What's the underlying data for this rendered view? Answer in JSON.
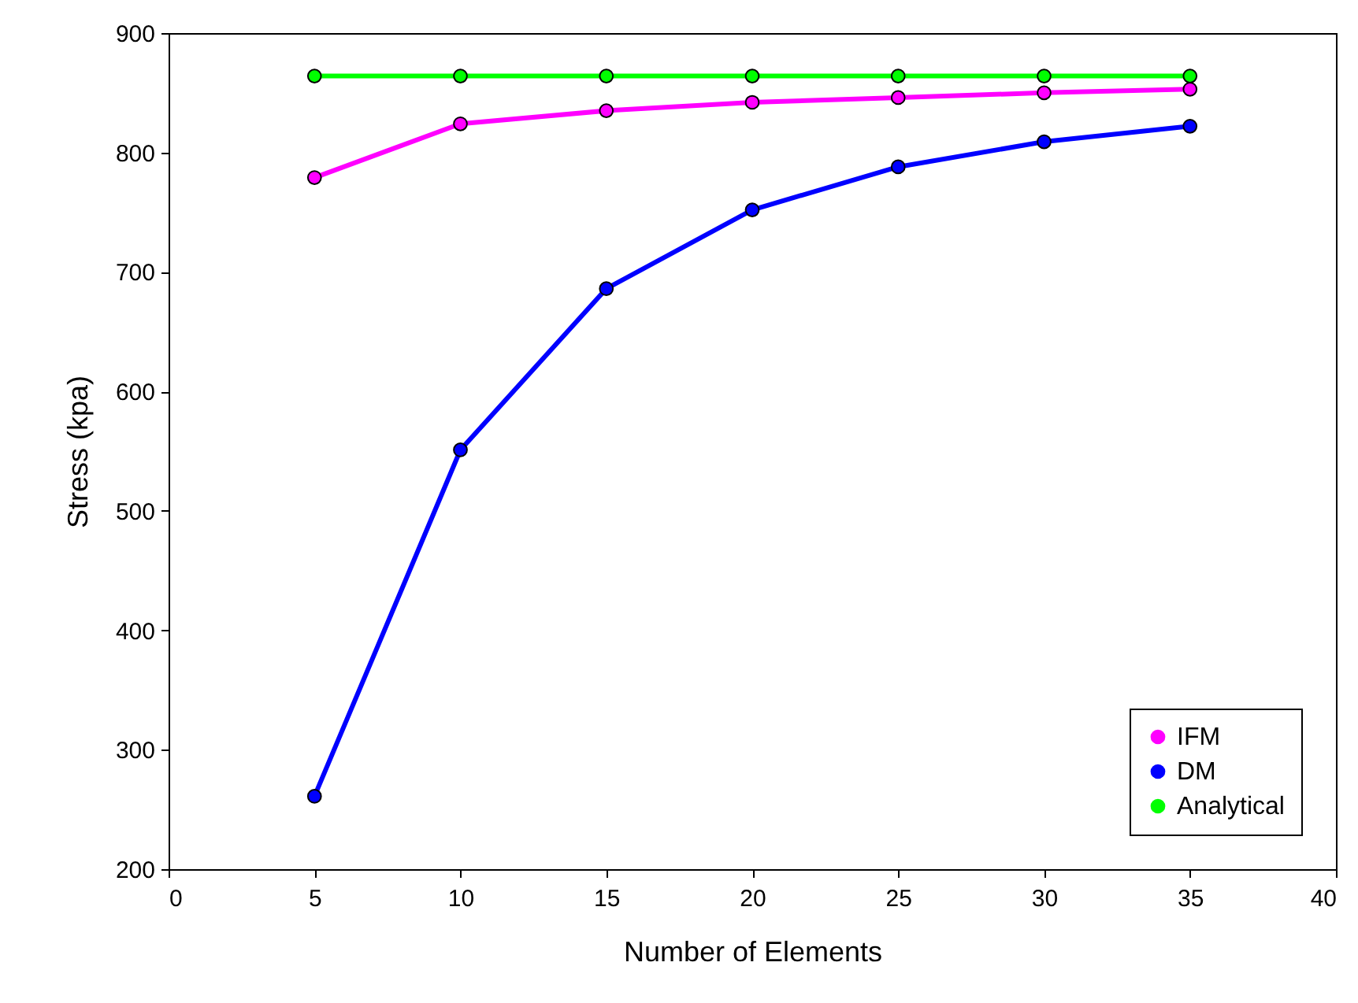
{
  "chart_data": {
    "type": "line",
    "xlabel": "Number of Elements",
    "ylabel": "Stress (kpa)",
    "x": [
      5,
      10,
      15,
      20,
      25,
      30,
      35
    ],
    "series": [
      {
        "name": "IFM",
        "color": "#ff00ff",
        "values": [
          779,
          824,
          835,
          842,
          846,
          850,
          853
        ]
      },
      {
        "name": "DM",
        "color": "#0000ff",
        "values": [
          261,
          551,
          686,
          752,
          788,
          809,
          822
        ]
      },
      {
        "name": "Analytical",
        "color": "#00ff00",
        "values": [
          864,
          864,
          864,
          864,
          864,
          864,
          864
        ]
      }
    ],
    "xlim": [
      0,
      40
    ],
    "xticks": [
      0,
      5,
      10,
      15,
      20,
      25,
      30,
      35,
      40
    ],
    "ylim": [
      200,
      900
    ],
    "yticks": [
      200,
      300,
      400,
      500,
      600,
      700,
      800,
      900
    ],
    "grid": false,
    "legend": "bottom right",
    "marker": "circle",
    "line_style": "solid"
  }
}
